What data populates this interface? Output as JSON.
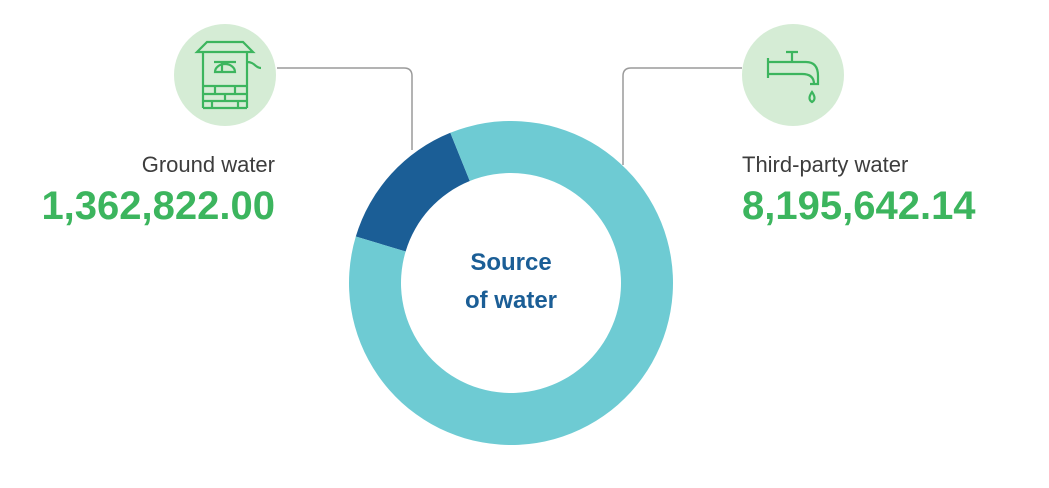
{
  "chart_data": {
    "type": "donut",
    "title": "Source of water",
    "categories": [
      "Ground water",
      "Third-party water"
    ],
    "values": [
      1362822.0,
      8195642.14
    ],
    "value_labels": [
      "1,362,822.00",
      "8,195,642.14"
    ],
    "colors": [
      "#1b5e96",
      "#6ecbd3"
    ]
  }
}
